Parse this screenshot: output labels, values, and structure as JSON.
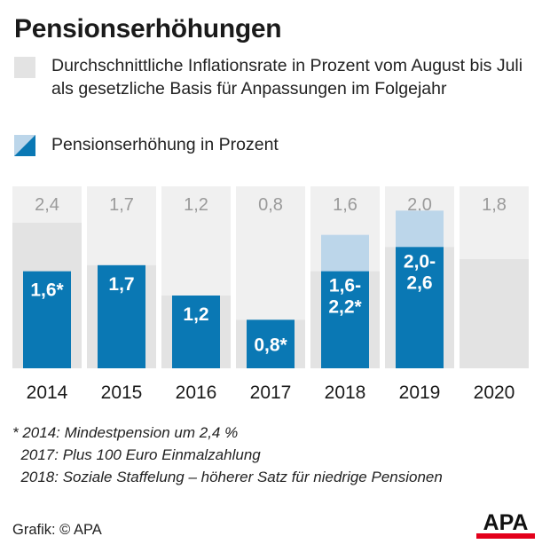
{
  "title": "Pensionserhöhungen",
  "legend": {
    "inflation_label": "Durchschnittliche Inflationsrate in Prozent vom August bis Juli als gesetzliche Basis für Anpassungen im Folgejahr",
    "pension_label": "Pensionserhöhung in Prozent"
  },
  "colors": {
    "panel_bg": "#f0f0f0",
    "inflation_bar": "#e3e3e3",
    "pension_bar": "#0a78b4",
    "pension_range": "#bcd6ea",
    "inflation_label_text": "#9a9a9a",
    "bar_label_text": "#ffffff",
    "logo_red": "#e3001b"
  },
  "chart_data": {
    "type": "bar",
    "categories": [
      "2014",
      "2015",
      "2016",
      "2017",
      "2018",
      "2019",
      "2020"
    ],
    "series": [
      {
        "name": "Durchschnittliche Inflationsrate in Prozent vom August bis Juli als gesetzliche Basis für Anpassungen im Folgejahr",
        "values": [
          2.4,
          1.7,
          1.2,
          0.8,
          1.6,
          2.0,
          1.8
        ],
        "labels": [
          "2,4",
          "1,7",
          "1,2",
          "0,8",
          "1,6",
          "2,0",
          "1,8"
        ]
      },
      {
        "name": "Pensionserhöhung in Prozent",
        "values": [
          1.6,
          1.7,
          1.2,
          0.8,
          1.6,
          2.0,
          null
        ],
        "range_max": [
          null,
          null,
          null,
          null,
          2.2,
          2.6,
          null
        ],
        "labels": [
          [
            "1,6*"
          ],
          [
            "1,7"
          ],
          [
            "1,2"
          ],
          [
            "0,8*"
          ],
          [
            "1,6-",
            "2,2*"
          ],
          [
            "2,0-",
            "2,6"
          ],
          []
        ]
      }
    ],
    "ylim": [
      0,
      3.0
    ],
    "grid": false
  },
  "footnotes": [
    "* 2014: Mindestpension um 2,4 %",
    "  2017: Plus 100 Euro Einmalzahlung",
    "  2018: Soziale Staffelung – höherer Satz für niedrige Pensionen"
  ],
  "source": "Grafik: © APA",
  "logo_text": "APA"
}
